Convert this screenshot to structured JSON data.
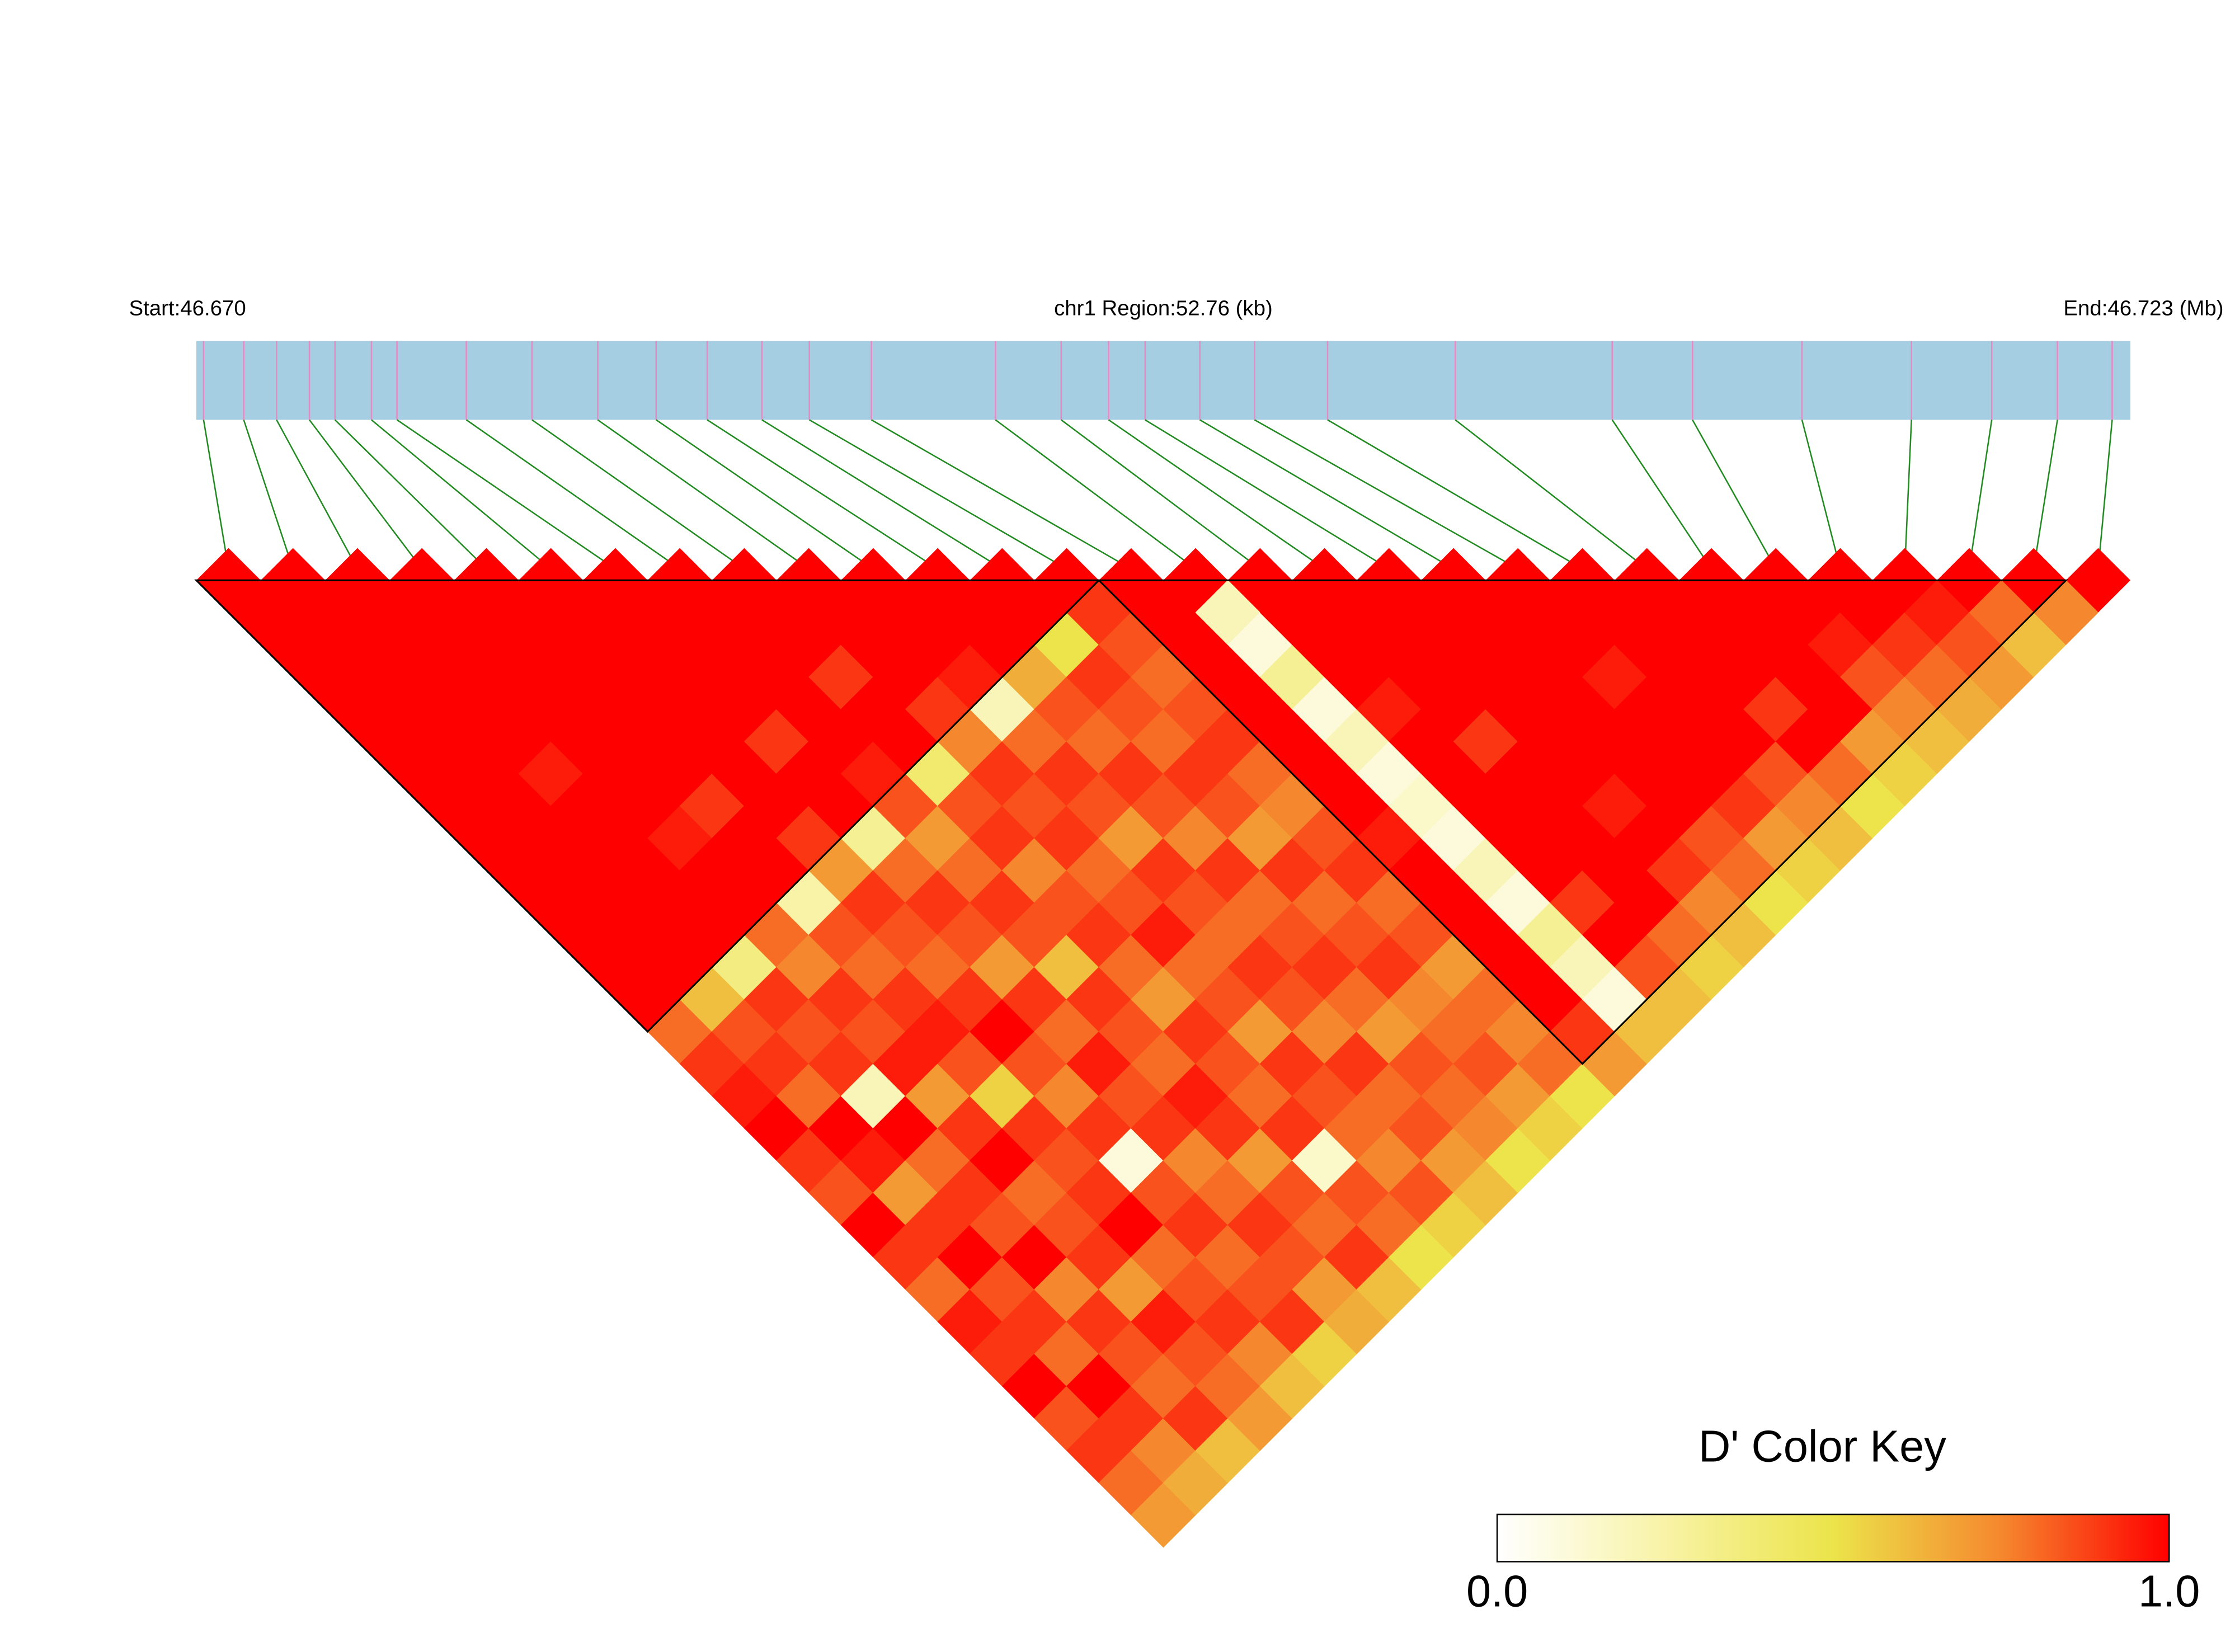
{
  "chart_data": {
    "type": "ld-heatmap",
    "start_label": "Start:46.670",
    "region_label": "chr1 Region:52.76 (kb)",
    "end_label": "End:46.723 (Mb)",
    "xlim": [
      46.67,
      46.723
    ],
    "positions": [
      46.6702,
      46.6713,
      46.6722,
      46.6731,
      46.6738,
      46.6748,
      46.6755,
      46.6774,
      46.6792,
      46.681,
      46.6826,
      46.684,
      46.6855,
      46.6868,
      46.6885,
      46.6919,
      46.6937,
      46.695,
      46.696,
      46.6975,
      46.699,
      46.701,
      46.7045,
      46.7088,
      46.711,
      46.714,
      46.717,
      46.7192,
      46.721,
      46.7225
    ],
    "dprime": [
      [
        1,
        1,
        1,
        1,
        1,
        1,
        1,
        1,
        1,
        1,
        1,
        1,
        1,
        0.8,
        0.9,
        0.95,
        1,
        0.9,
        0.85,
        1,
        0.9,
        0.8,
        0.95,
        0.9,
        1,
        0.85,
        0.9,
        0.8,
        0.7
      ],
      [
        1,
        1,
        1,
        1,
        1,
        1,
        1,
        1,
        1,
        1,
        1,
        1,
        0.6,
        0.85,
        0.9,
        0.8,
        1,
        0.95,
        0.7,
        0.9,
        1,
        0.85,
        0.9,
        0.8,
        1,
        0.9,
        0.75,
        0.65
      ],
      [
        1,
        1,
        1,
        1,
        1,
        0.95,
        1,
        1,
        1,
        1,
        1,
        0.35,
        0.9,
        0.85,
        0.9,
        0.2,
        1,
        0.8,
        0.9,
        0.85,
        1,
        0.75,
        0.9,
        0.85,
        0.8,
        0.9,
        0.6
      ],
      [
        1,
        1,
        1,
        1,
        1,
        1,
        1,
        0.95,
        1,
        1,
        0.8,
        0.75,
        0.9,
        0.85,
        0.95,
        0.7,
        0.9,
        1,
        0.8,
        0.85,
        0.9,
        0.7,
        0.95,
        0.85,
        0.8,
        0.7
      ],
      [
        1,
        1,
        1,
        1,
        1,
        1,
        0.9,
        1,
        1,
        0.25,
        0.85,
        0.8,
        0.9,
        0.95,
        0.85,
        0.55,
        0.9,
        0.85,
        0.9,
        1,
        0.8,
        0.85,
        0.9,
        0.75,
        0.6
      ],
      [
        1,
        1,
        1,
        1,
        1,
        1,
        1,
        0.9,
        0.7,
        0.9,
        0.85,
        0.8,
        0.9,
        1,
        0.85,
        0.75,
        0.9,
        0.1,
        0.85,
        0.9,
        0.8,
        0.85,
        0.9,
        0.55
      ],
      [
        1,
        1,
        1,
        1,
        0.9,
        1,
        1,
        0.3,
        0.8,
        0.9,
        0.85,
        0.7,
        0.9,
        0.8,
        0.95,
        0.85,
        0.9,
        0.75,
        0.8,
        0.9,
        0.85,
        0.7,
        0.65
      ],
      [
        1,
        1,
        1,
        1,
        1,
        0.95,
        0.85,
        0.7,
        0.8,
        0.9,
        0.85,
        0.6,
        0.9,
        0.85,
        0.8,
        0.95,
        0.9,
        0.7,
        0.85,
        0.8,
        0.9,
        0.6
      ],
      [
        1,
        1,
        0.9,
        1,
        1,
        0.4,
        0.85,
        0.9,
        0.75,
        0.85,
        0.9,
        0.8,
        0.7,
        0.9,
        0.85,
        0.8,
        0.9,
        0.15,
        0.85,
        0.8,
        0.5
      ],
      [
        1,
        1,
        1,
        0.9,
        0.75,
        0.9,
        0.85,
        0.9,
        0.8,
        0.85,
        0.95,
        0.8,
        0.85,
        0.7,
        0.9,
        0.85,
        0.8,
        0.75,
        0.85,
        0.55
      ],
      [
        1,
        1,
        0.95,
        0.2,
        0.8,
        0.9,
        0.85,
        0.7,
        0.9,
        0.85,
        0.8,
        0.9,
        0.85,
        0.75,
        0.9,
        0.8,
        0.85,
        0.7,
        0.6
      ],
      [
        1,
        1,
        0.65,
        0.85,
        0.8,
        0.9,
        0.85,
        0.75,
        0.9,
        0.8,
        0.85,
        0.9,
        0.8,
        0.7,
        0.85,
        0.8,
        0.75,
        0.5
      ],
      [
        1,
        0.5,
        0.9,
        0.85,
        0.8,
        0.9,
        0.85,
        0.7,
        0.9,
        0.8,
        0.85,
        0.9,
        0.75,
        0.8,
        0.85,
        0.7,
        0.55
      ],
      [
        0.9,
        0.85,
        0.8,
        0.85,
        0.9,
        0.8,
        0.75,
        0.85,
        0.9,
        0.8,
        0.85,
        0.7,
        0.8,
        0.75,
        0.8,
        0.5
      ],
      [
        1,
        1,
        1,
        1,
        1,
        1,
        1,
        0.95,
        1,
        1,
        1,
        1,
        1,
        0.9,
        0.7
      ],
      [
        0.2,
        0.1,
        0.3,
        0.1,
        0.2,
        0.1,
        0.15,
        0.1,
        0.2,
        0.1,
        0.3,
        0.2,
        0.1,
        0.6
      ],
      [
        1,
        1,
        1,
        0.95,
        1,
        1,
        1,
        1,
        1,
        0.9,
        1,
        0.85,
        0.6
      ],
      [
        1,
        1,
        1,
        1,
        0.9,
        1,
        1,
        1,
        1,
        1,
        0.8,
        0.55
      ],
      [
        1,
        1,
        1,
        1,
        1,
        1,
        0.95,
        1,
        0.9,
        0.75,
        0.6
      ],
      [
        1,
        1,
        1,
        1,
        1,
        1,
        1,
        0.85,
        0.8,
        0.5
      ],
      [
        1,
        1,
        0.95,
        1,
        1,
        1,
        0.9,
        0.7,
        0.55
      ],
      [
        1,
        1,
        1,
        1,
        1,
        0.85,
        0.75,
        0.6
      ],
      [
        1,
        1,
        1,
        0.9,
        1,
        0.8,
        0.5
      ],
      [
        1,
        1,
        1,
        1,
        0.7,
        0.55
      ],
      [
        1,
        0.95,
        0.85,
        0.75,
        0.6
      ],
      [
        1,
        0.9,
        0.8,
        0.65
      ],
      [
        0.95,
        0.85,
        0.7
      ],
      [
        0.8,
        0.6
      ],
      [
        0.75
      ]
    ],
    "blocks": [
      [
        0,
        13
      ],
      [
        14,
        28
      ]
    ],
    "bar_color": "#a6cee3",
    "snp_line_color": "#e78ac3",
    "link_color": "#228b22",
    "block_color": "#000000",
    "colorbar": {
      "title": "D' Color Key",
      "lim": [
        0,
        1
      ],
      "ticks": [
        {
          "value": 0,
          "label": "0.0"
        },
        {
          "value": 1,
          "label": "1.0"
        }
      ],
      "colors": [
        "#ffffff",
        "#f8f3a6",
        "#ece44a",
        "#f5882e",
        "#ff0000"
      ]
    }
  }
}
